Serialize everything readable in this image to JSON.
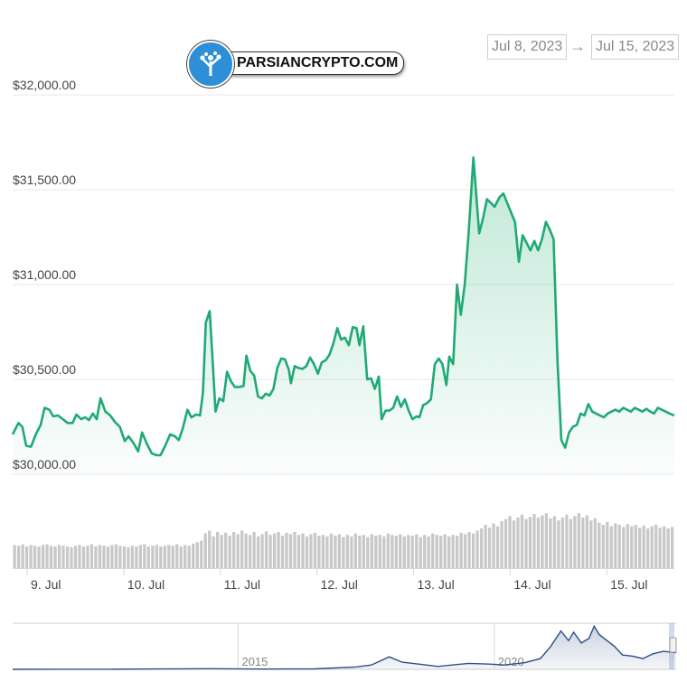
{
  "range": {
    "start_label": "Jul 8, 2023",
    "arrow_label": "→",
    "end_label": "Jul 15, 2023"
  },
  "watermark": {
    "text": "PARSIANCRYPTO.COM"
  },
  "colors": {
    "line": "#1faa74",
    "volume": "#c8c8c8",
    "navigator": "#2f4f86",
    "grid": "#e8e8e8"
  },
  "chart_data": [
    {
      "type": "area",
      "y_tick_labels": [
        "$32,000.00",
        "$31,500.00",
        "$31,000.00",
        "$30,500.00",
        "$30,000.00"
      ],
      "y_ticks": [
        32000,
        31500,
        31000,
        30500,
        30000
      ],
      "ylim": [
        30000,
        32000
      ],
      "x_tick_labels": [
        "9. Jul",
        "10. Jul",
        "11. Jul",
        "12. Jul",
        "13. Jul",
        "14. Jul",
        "15. Jul"
      ],
      "xlim": [
        0,
        6.85
      ],
      "series": [
        {
          "values": [
            [
              0,
              30210
            ],
            [
              0.06,
              30270
            ],
            [
              0.1,
              30250
            ],
            [
              0.14,
              30150
            ],
            [
              0.19,
              30145
            ],
            [
              0.24,
              30210
            ],
            [
              0.29,
              30260
            ],
            [
              0.33,
              30350
            ],
            [
              0.38,
              30340
            ],
            [
              0.42,
              30305
            ],
            [
              0.47,
              30310
            ],
            [
              0.52,
              30290
            ],
            [
              0.57,
              30270
            ],
            [
              0.62,
              30270
            ],
            [
              0.66,
              30315
            ],
            [
              0.71,
              30290
            ],
            [
              0.75,
              30300
            ],
            [
              0.79,
              30285
            ],
            [
              0.83,
              30320
            ],
            [
              0.87,
              30290
            ],
            [
              0.91,
              30400
            ],
            [
              0.96,
              30330
            ],
            [
              1.01,
              30310
            ],
            [
              1.06,
              30275
            ],
            [
              1.11,
              30250
            ],
            [
              1.16,
              30175
            ],
            [
              1.2,
              30200
            ],
            [
              1.25,
              30165
            ],
            [
              1.3,
              30120
            ],
            [
              1.34,
              30220
            ],
            [
              1.39,
              30160
            ],
            [
              1.44,
              30110
            ],
            [
              1.49,
              30100
            ],
            [
              1.53,
              30100
            ],
            [
              1.58,
              30150
            ],
            [
              1.63,
              30210
            ],
            [
              1.68,
              30200
            ],
            [
              1.72,
              30180
            ],
            [
              1.76,
              30240
            ],
            [
              1.81,
              30340
            ],
            [
              1.85,
              30300
            ],
            [
              1.9,
              30315
            ],
            [
              1.94,
              30310
            ],
            [
              1.97,
              30430
            ],
            [
              2.0,
              30800
            ],
            [
              2.04,
              30860
            ],
            [
              2.07,
              30600
            ],
            [
              2.1,
              30330
            ],
            [
              2.14,
              30400
            ],
            [
              2.18,
              30385
            ],
            [
              2.22,
              30540
            ],
            [
              2.26,
              30490
            ],
            [
              2.3,
              30460
            ],
            [
              2.35,
              30460
            ],
            [
              2.39,
              30465
            ],
            [
              2.42,
              30625
            ],
            [
              2.46,
              30545
            ],
            [
              2.5,
              30520
            ],
            [
              2.54,
              30410
            ],
            [
              2.58,
              30400
            ],
            [
              2.62,
              30425
            ],
            [
              2.66,
              30415
            ],
            [
              2.7,
              30450
            ],
            [
              2.74,
              30560
            ],
            [
              2.78,
              30610
            ],
            [
              2.82,
              30605
            ],
            [
              2.86,
              30550
            ],
            [
              2.88,
              30480
            ],
            [
              2.92,
              30570
            ],
            [
              2.96,
              30560
            ],
            [
              3.0,
              30555
            ],
            [
              3.04,
              30570
            ],
            [
              3.08,
              30615
            ],
            [
              3.12,
              30580
            ],
            [
              3.16,
              30530
            ],
            [
              3.2,
              30590
            ],
            [
              3.24,
              30600
            ],
            [
              3.28,
              30630
            ],
            [
              3.32,
              30690
            ],
            [
              3.36,
              30770
            ],
            [
              3.4,
              30710
            ],
            [
              3.44,
              30720
            ],
            [
              3.48,
              30680
            ],
            [
              3.52,
              30775
            ],
            [
              3.56,
              30770
            ],
            [
              3.59,
              30680
            ],
            [
              3.63,
              30780
            ],
            [
              3.67,
              30500
            ],
            [
              3.71,
              30505
            ],
            [
              3.75,
              30450
            ],
            [
              3.79,
              30515
            ],
            [
              3.82,
              30290
            ],
            [
              3.86,
              30335
            ],
            [
              3.9,
              30335
            ],
            [
              3.94,
              30350
            ],
            [
              3.98,
              30410
            ],
            [
              4.02,
              30355
            ],
            [
              4.06,
              30395
            ],
            [
              4.1,
              30335
            ],
            [
              4.14,
              30290
            ],
            [
              4.18,
              30305
            ],
            [
              4.21,
              30300
            ],
            [
              4.25,
              30365
            ],
            [
              4.29,
              30375
            ],
            [
              4.33,
              30395
            ],
            [
              4.37,
              30580
            ],
            [
              4.41,
              30610
            ],
            [
              4.45,
              30580
            ],
            [
              4.49,
              30470
            ],
            [
              4.52,
              30620
            ],
            [
              4.56,
              30580
            ],
            [
              4.6,
              31000
            ],
            [
              4.64,
              30840
            ],
            [
              4.68,
              31000
            ],
            [
              4.72,
              31270
            ],
            [
              4.77,
              31670
            ],
            [
              4.83,
              31270
            ],
            [
              4.87,
              31350
            ],
            [
              4.91,
              31450
            ],
            [
              4.95,
              31430
            ],
            [
              4.99,
              31410
            ],
            [
              5.04,
              31460
            ],
            [
              5.08,
              31480
            ],
            [
              5.12,
              31430
            ],
            [
              5.16,
              31380
            ],
            [
              5.2,
              31330
            ],
            [
              5.24,
              31120
            ],
            [
              5.28,
              31260
            ],
            [
              5.32,
              31220
            ],
            [
              5.36,
              31180
            ],
            [
              5.4,
              31230
            ],
            [
              5.44,
              31180
            ],
            [
              5.48,
              31240
            ],
            [
              5.52,
              31330
            ],
            [
              5.56,
              31290
            ],
            [
              5.6,
              31240
            ],
            [
              5.64,
              30600
            ],
            [
              5.68,
              30180
            ],
            [
              5.72,
              30140
            ],
            [
              5.76,
              30220
            ],
            [
              5.8,
              30250
            ],
            [
              5.84,
              30260
            ],
            [
              5.88,
              30320
            ],
            [
              5.92,
              30310
            ],
            [
              5.96,
              30370
            ],
            [
              6.0,
              30330
            ],
            [
              6.04,
              30320
            ],
            [
              6.08,
              30310
            ],
            [
              6.12,
              30300
            ],
            [
              6.16,
              30320
            ],
            [
              6.2,
              30330
            ],
            [
              6.24,
              30340
            ],
            [
              6.28,
              30330
            ],
            [
              6.32,
              30350
            ],
            [
              6.36,
              30340
            ],
            [
              6.4,
              30330
            ],
            [
              6.44,
              30350
            ],
            [
              6.48,
              30340
            ],
            [
              6.52,
              30330
            ],
            [
              6.56,
              30345
            ],
            [
              6.6,
              30330
            ],
            [
              6.64,
              30320
            ],
            [
              6.68,
              30350
            ],
            [
              6.72,
              30340
            ],
            [
              6.76,
              30330
            ],
            [
              6.8,
              30320
            ],
            [
              6.85,
              30310
            ]
          ]
        }
      ],
      "volume": [
        0.32,
        0.31,
        0.33,
        0.3,
        0.32,
        0.31,
        0.3,
        0.32,
        0.33,
        0.31,
        0.3,
        0.32,
        0.31,
        0.3,
        0.29,
        0.31,
        0.32,
        0.3,
        0.31,
        0.33,
        0.3,
        0.32,
        0.31,
        0.3,
        0.32,
        0.33,
        0.31,
        0.3,
        0.29,
        0.31,
        0.3,
        0.32,
        0.33,
        0.3,
        0.31,
        0.32,
        0.3,
        0.31,
        0.32,
        0.31,
        0.33,
        0.3,
        0.32,
        0.31,
        0.34,
        0.36,
        0.38,
        0.48,
        0.52,
        0.44,
        0.5,
        0.46,
        0.49,
        0.45,
        0.5,
        0.47,
        0.52,
        0.48,
        0.46,
        0.5,
        0.44,
        0.47,
        0.51,
        0.46,
        0.48,
        0.5,
        0.45,
        0.49,
        0.47,
        0.5,
        0.46,
        0.48,
        0.44,
        0.47,
        0.49,
        0.45,
        0.46,
        0.44,
        0.48,
        0.45,
        0.47,
        0.43,
        0.46,
        0.44,
        0.48,
        0.45,
        0.46,
        0.43,
        0.47,
        0.45,
        0.46,
        0.44,
        0.48,
        0.46,
        0.45,
        0.47,
        0.44,
        0.46,
        0.45,
        0.47,
        0.43,
        0.46,
        0.44,
        0.48,
        0.46,
        0.45,
        0.47,
        0.44,
        0.46,
        0.45,
        0.49,
        0.47,
        0.5,
        0.48,
        0.52,
        0.55,
        0.6,
        0.56,
        0.62,
        0.58,
        0.65,
        0.68,
        0.72,
        0.66,
        0.7,
        0.74,
        0.68,
        0.71,
        0.75,
        0.7,
        0.73,
        0.76,
        0.69,
        0.72,
        0.66,
        0.7,
        0.74,
        0.68,
        0.72,
        0.76,
        0.7,
        0.73,
        0.66,
        0.69,
        0.63,
        0.6,
        0.64,
        0.58,
        0.62,
        0.6,
        0.57,
        0.61,
        0.58,
        0.6,
        0.56,
        0.59,
        0.55,
        0.58,
        0.6,
        0.56,
        0.58,
        0.55,
        0.57
      ]
    },
    {
      "type": "line",
      "x_tick_labels": [
        "2015",
        "2020"
      ],
      "x_ticks": [
        2015,
        2020
      ],
      "xlim": [
        2010.6,
        2023.55
      ],
      "series": [
        {
          "values": [
            [
              2010.6,
              0
            ],
            [
              2011.5,
              0.2
            ],
            [
              2012.5,
              0.3
            ],
            [
              2013.5,
              1.5
            ],
            [
              2014.5,
              2.5
            ],
            [
              2015.5,
              1
            ],
            [
              2016.5,
              2
            ],
            [
              2017.3,
              10
            ],
            [
              2017.6,
              18
            ],
            [
              2017.95,
              52
            ],
            [
              2018.2,
              30
            ],
            [
              2018.6,
              20
            ],
            [
              2018.9,
              12
            ],
            [
              2019.5,
              25
            ],
            [
              2019.9,
              22
            ],
            [
              2020.2,
              18
            ],
            [
              2020.6,
              28
            ],
            [
              2020.9,
              45
            ],
            [
              2021.1,
              95
            ],
            [
              2021.3,
              160
            ],
            [
              2021.45,
              120
            ],
            [
              2021.55,
              155
            ],
            [
              2021.7,
              110
            ],
            [
              2021.85,
              130
            ],
            [
              2021.95,
              180
            ],
            [
              2022.05,
              145
            ],
            [
              2022.2,
              120
            ],
            [
              2022.35,
              95
            ],
            [
              2022.5,
              60
            ],
            [
              2022.7,
              55
            ],
            [
              2022.9,
              45
            ],
            [
              2023.1,
              65
            ],
            [
              2023.3,
              75
            ],
            [
              2023.55,
              70
            ]
          ]
        }
      ]
    }
  ]
}
